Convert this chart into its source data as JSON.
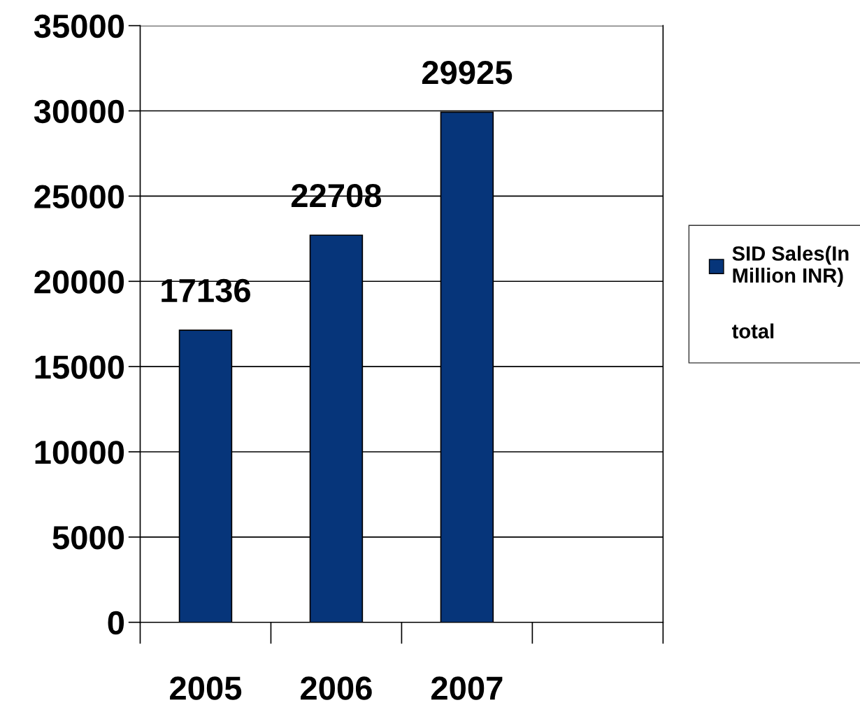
{
  "chart_data": {
    "type": "bar",
    "categories": [
      "2005",
      "2006",
      "2007",
      null
    ],
    "series": [
      {
        "name": "SID Sales(In Million INR)",
        "color": "#06357a",
        "values": [
          17136,
          22708,
          29925,
          null
        ]
      }
    ],
    "ylim": [
      0,
      35000
    ],
    "yticks": [
      0,
      5000,
      10000,
      15000,
      20000,
      25000,
      30000,
      35000
    ],
    "grid": "y",
    "legend": "right",
    "data_labels": true,
    "annotations": [
      "total"
    ]
  }
}
